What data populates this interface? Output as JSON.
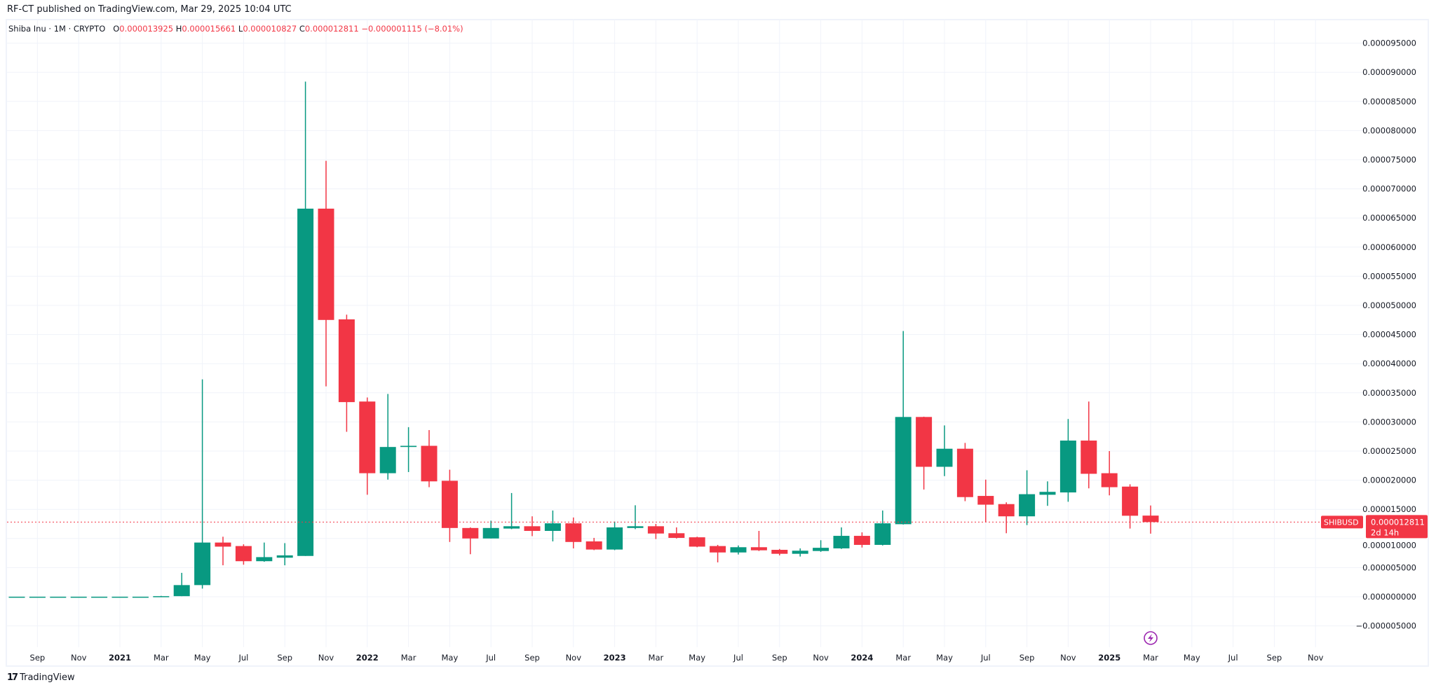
{
  "header": {
    "published": "RF-CT published on TradingView.com, Mar 29, 2025 10:04 UTC"
  },
  "legend": {
    "symbol": "Shiba Inu · 1M · CRYPTO",
    "o_label": "O",
    "o_value": "0.000013925",
    "h_label": "H",
    "h_value": "0.000015661",
    "l_label": "L",
    "l_value": "0.000010827",
    "c_label": "C",
    "c_value": "0.000012811",
    "change": "−0.000001115 (−8.01%)"
  },
  "price_tag": {
    "symbol": "SHIBUSD",
    "price": "0.000012811",
    "countdown": "2d 14h"
  },
  "footer": {
    "logo_mark": "17",
    "brand": "TradingView"
  },
  "colors": {
    "up": "#089981",
    "down": "#f23645",
    "grid": "#f0f3fa",
    "event": "#9c27b0"
  },
  "chart_data": {
    "type": "candlestick",
    "title": "Shiba Inu · 1M · CRYPTO",
    "interval": "1M",
    "value_scale": 1e-06,
    "ylim": [
      -5,
      95
    ],
    "y_ticks": [
      "0.000095000",
      "0.000090000",
      "0.000085000",
      "0.000080000",
      "0.000075000",
      "0.000070000",
      "0.000065000",
      "0.000060000",
      "0.000055000",
      "0.000050000",
      "0.000045000",
      "0.000040000",
      "0.000035000",
      "0.000030000",
      "0.000025000",
      "0.000020000",
      "0.000015000",
      "0.000010000",
      "0.000005000",
      "0.000000000",
      "−0.000005000"
    ],
    "y_tick_values": [
      95,
      90,
      85,
      80,
      75,
      70,
      65,
      60,
      55,
      50,
      45,
      40,
      35,
      30,
      25,
      20,
      15,
      10,
      5,
      0,
      -5
    ],
    "x_ticks": [
      {
        "label": "Sep",
        "m": -4
      },
      {
        "label": "Nov",
        "m": -2
      },
      {
        "label": "2021",
        "m": 0,
        "year": true
      },
      {
        "label": "Mar",
        "m": 2
      },
      {
        "label": "May",
        "m": 4
      },
      {
        "label": "Jul",
        "m": 6
      },
      {
        "label": "Sep",
        "m": 8
      },
      {
        "label": "Nov",
        "m": 10
      },
      {
        "label": "2022",
        "m": 12,
        "year": true
      },
      {
        "label": "Mar",
        "m": 14
      },
      {
        "label": "May",
        "m": 16
      },
      {
        "label": "Jul",
        "m": 18
      },
      {
        "label": "Sep",
        "m": 20
      },
      {
        "label": "Nov",
        "m": 22
      },
      {
        "label": "2023",
        "m": 24,
        "year": true
      },
      {
        "label": "Mar",
        "m": 26
      },
      {
        "label": "May",
        "m": 28
      },
      {
        "label": "Jul",
        "m": 30
      },
      {
        "label": "Sep",
        "m": 32
      },
      {
        "label": "Nov",
        "m": 34
      },
      {
        "label": "2024",
        "m": 36,
        "year": true
      },
      {
        "label": "Mar",
        "m": 38
      },
      {
        "label": "May",
        "m": 40
      },
      {
        "label": "Jul",
        "m": 42
      },
      {
        "label": "Sep",
        "m": 44
      },
      {
        "label": "Nov",
        "m": 46
      },
      {
        "label": "2025",
        "m": 48,
        "year": true
      },
      {
        "label": "Mar",
        "m": 50
      },
      {
        "label": "May",
        "m": 52
      },
      {
        "label": "Jul",
        "m": 54
      },
      {
        "label": "Sep",
        "m": 56
      },
      {
        "label": "Nov",
        "m": 58
      }
    ],
    "first_month": "2020-08",
    "ohlc": [
      [
        0.01,
        0.01,
        0.01,
        0.01
      ],
      [
        0.01,
        0.01,
        0.01,
        0.01
      ],
      [
        0.01,
        0.01,
        0.01,
        0.01
      ],
      [
        0.01,
        0.01,
        0.01,
        0.01
      ],
      [
        0.01,
        0.01,
        0.01,
        0.01
      ],
      [
        0.01,
        0.01,
        0.01,
        0.01
      ],
      [
        0.01,
        0.01,
        0.01,
        0.01
      ],
      [
        0.02,
        0.15,
        0.02,
        0.1
      ],
      [
        0.1,
        4.1,
        0.1,
        2.0
      ],
      [
        2.0,
        37.3,
        1.4,
        9.3
      ],
      [
        9.3,
        10.3,
        5.4,
        8.6
      ],
      [
        8.7,
        9.0,
        5.5,
        6.1
      ],
      [
        6.1,
        9.3,
        6.0,
        6.8
      ],
      [
        6.7,
        9.2,
        5.4,
        7.1
      ],
      [
        7.0,
        88.4,
        7.0,
        66.6
      ],
      [
        66.6,
        74.8,
        36.1,
        47.5
      ],
      [
        47.6,
        48.4,
        28.3,
        33.4
      ],
      [
        33.5,
        34.2,
        17.5,
        21.2
      ],
      [
        21.2,
        34.8,
        20.1,
        25.7
      ],
      [
        25.7,
        29.1,
        21.4,
        25.9
      ],
      [
        25.9,
        28.6,
        18.8,
        19.8
      ],
      [
        19.9,
        21.8,
        9.4,
        11.8
      ],
      [
        11.8,
        11.9,
        7.3,
        10.0
      ],
      [
        10.0,
        13.05,
        10.0,
        11.8
      ],
      [
        11.7,
        17.8,
        11.6,
        12.1
      ],
      [
        12.1,
        13.8,
        10.4,
        11.3
      ],
      [
        11.3,
        14.8,
        9.5,
        12.6
      ],
      [
        12.6,
        13.6,
        8.3,
        9.4
      ],
      [
        9.5,
        10.1,
        8.0,
        8.1
      ],
      [
        8.1,
        12.9,
        8.0,
        11.9
      ],
      [
        11.8,
        15.7,
        11.6,
        12.1
      ],
      [
        12.1,
        12.5,
        9.9,
        10.85
      ],
      [
        10.9,
        11.9,
        10.0,
        10.1
      ],
      [
        10.2,
        10.3,
        8.5,
        8.6
      ],
      [
        8.7,
        8.9,
        5.9,
        7.6
      ],
      [
        7.6,
        8.8,
        7.25,
        8.5
      ],
      [
        8.5,
        11.3,
        7.85,
        7.97
      ],
      [
        8.05,
        8.2,
        7.1,
        7.37
      ],
      [
        7.37,
        8.3,
        6.9,
        7.9
      ],
      [
        7.85,
        9.7,
        7.7,
        8.4
      ],
      [
        8.3,
        11.9,
        8.2,
        10.45
      ],
      [
        10.45,
        11.05,
        8.45,
        8.9
      ],
      [
        8.9,
        14.8,
        8.8,
        12.6
      ],
      [
        12.45,
        45.6,
        12.4,
        30.85
      ],
      [
        30.85,
        30.9,
        18.4,
        22.3
      ],
      [
        22.3,
        29.4,
        20.7,
        25.4
      ],
      [
        25.4,
        26.4,
        16.4,
        17.1
      ],
      [
        17.3,
        20.1,
        12.85,
        15.8
      ],
      [
        15.9,
        16.2,
        10.9,
        13.8
      ],
      [
        13.8,
        21.7,
        12.3,
        17.6
      ],
      [
        17.5,
        19.8,
        15.6,
        18.0
      ],
      [
        17.9,
        30.5,
        16.3,
        26.8
      ],
      [
        26.8,
        33.5,
        18.6,
        21.1
      ],
      [
        21.2,
        25.0,
        17.4,
        18.8
      ],
      [
        18.9,
        19.3,
        11.7,
        13.9
      ],
      [
        13.925,
        15.661,
        10.827,
        12.811
      ]
    ],
    "last_price": 12.811,
    "event_marker_m": 50
  }
}
